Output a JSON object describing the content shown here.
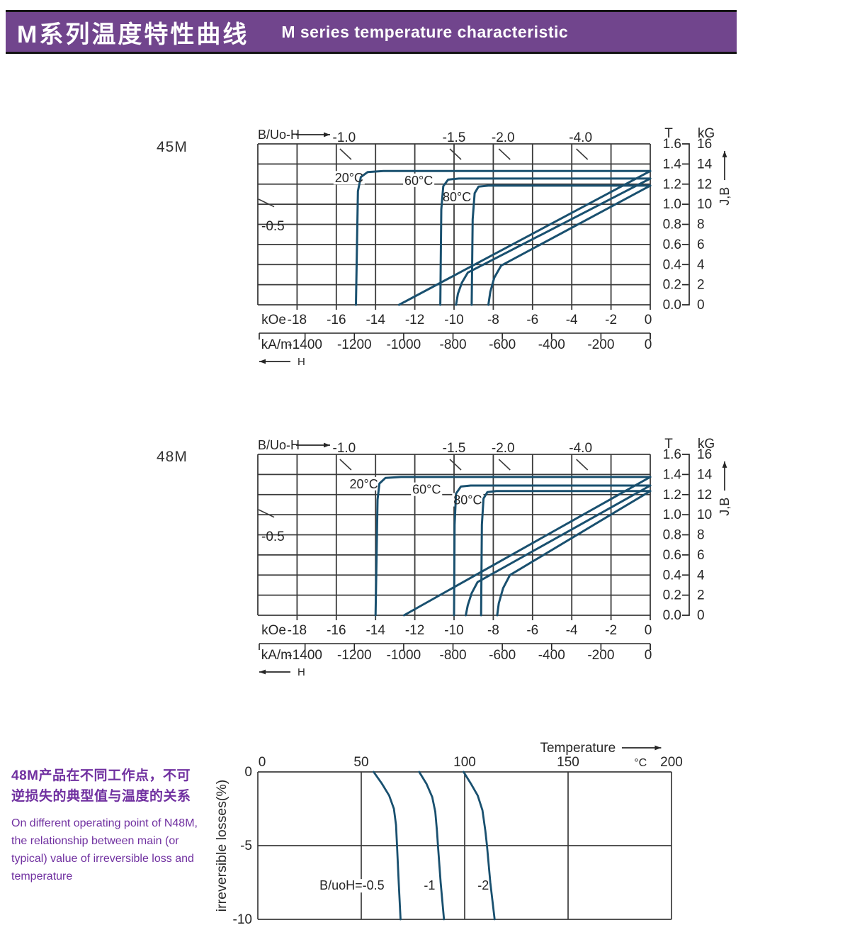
{
  "header": {
    "title_zh": "M系列温度特性曲线",
    "title_en": "M series temperature characteristic"
  },
  "colors": {
    "curve": "#19506f",
    "grid": "#3b3b3b",
    "text": "#262626",
    "accent_purple": "#7030a0",
    "header_bg": "#71458d",
    "background": "#ffffff"
  },
  "description": {
    "zh_lines": [
      "48M产品在不同工作点，不可",
      "逆损失的典型值与温度的关系"
    ],
    "en_lines": [
      "On different operating point of N48M,",
      "the relationship between main (or",
      "typical) value of irreversible loss and",
      "temperature"
    ]
  },
  "chart_data": [
    {
      "type": "line",
      "title": "45M",
      "axis_top_label": "B/Uo-H",
      "h_unit_primary": "kOe",
      "h_ticks_kOe": [
        -18,
        -16,
        -14,
        -12,
        -10,
        -8,
        -6,
        -4,
        -2,
        0
      ],
      "h_unit_secondary": "kA/m",
      "h_ticks_kAm": [
        -1400,
        -1200,
        -1000,
        -800,
        -600,
        -400,
        -200,
        0
      ],
      "h_arrow_label": "H",
      "h_range_kOe": [
        -20,
        0
      ],
      "b_unit_left": "T",
      "b_ticks_T": [
        "1.6",
        "1.4",
        "1.2",
        "1.0",
        "0.8",
        "0.6",
        "0.4",
        "0.2",
        "0.0"
      ],
      "b_unit_right": "kG",
      "b_ticks_kG": [
        16,
        14,
        12,
        10,
        8,
        6,
        4,
        2,
        0
      ],
      "b_range_kG": [
        0,
        16
      ],
      "jb_axis_label": "J,B",
      "grid": true,
      "load_lines": [
        {
          "label": "-1.0",
          "H_kOe": -15.6
        },
        {
          "label": "-1.5",
          "H_kOe": -10.0
        },
        {
          "label": "-2.0",
          "H_kOe": -7.5
        },
        {
          "label": "-4.0",
          "H_kOe": -3.55
        }
      ],
      "load_line_left": {
        "label": "-0.5",
        "B_kG": 7.4
      },
      "series": [
        {
          "name": "20°C",
          "label_pos": [
            -15.35,
            12.6
          ],
          "J": [
            [
              0,
              13.3
            ],
            [
              -13.6,
              13.3
            ],
            [
              -14.4,
              13.2
            ],
            [
              -14.75,
              12.7
            ],
            [
              -14.9,
              11.3
            ],
            [
              -15.0,
              0
            ]
          ],
          "B": [
            [
              0,
              13.3
            ],
            [
              -12.8,
              0
            ]
          ]
        },
        {
          "name": "60°C",
          "label_pos": [
            -11.8,
            12.35
          ],
          "J": [
            [
              0,
              12.55
            ],
            [
              -9.75,
              12.55
            ],
            [
              -10.3,
              12.45
            ],
            [
              -10.55,
              11.8
            ],
            [
              -10.65,
              9.5
            ],
            [
              -10.7,
              0
            ]
          ],
          "B": [
            [
              0,
              12.55
            ],
            [
              -9.3,
              3.2
            ],
            [
              -9.6,
              2.2
            ],
            [
              -9.8,
              1.1
            ],
            [
              -9.9,
              0
            ]
          ]
        },
        {
          "name": "80°C",
          "label_pos": [
            -9.85,
            10.7
          ],
          "J": [
            [
              0,
              11.85
            ],
            [
              -8.25,
              11.85
            ],
            [
              -8.75,
              11.75
            ],
            [
              -8.95,
              11.1
            ],
            [
              -9.05,
              8.5
            ],
            [
              -9.1,
              0
            ]
          ],
          "B": [
            [
              0,
              11.85
            ],
            [
              -7.6,
              3.9
            ],
            [
              -7.95,
              2.7
            ],
            [
              -8.15,
              1.3
            ],
            [
              -8.25,
              0
            ]
          ]
        }
      ]
    },
    {
      "type": "line",
      "title": "48M",
      "axis_top_label": "B/Uo-H",
      "h_unit_primary": "kOe",
      "h_ticks_kOe": [
        -18,
        -16,
        -14,
        -12,
        -10,
        -8,
        -6,
        -4,
        -2,
        0
      ],
      "h_unit_secondary": "kA/m",
      "h_ticks_kAm": [
        -1400,
        -1200,
        -1000,
        -800,
        -600,
        -400,
        -200,
        0
      ],
      "h_arrow_label": "H",
      "h_range_kOe": [
        -20,
        0
      ],
      "b_unit_left": "T",
      "b_ticks_T": [
        "1.6",
        "1.4",
        "1.2",
        "1.0",
        "0.8",
        "0.6",
        "0.4",
        "0.2",
        "0.0"
      ],
      "b_unit_right": "kG",
      "b_ticks_kG": [
        16,
        14,
        12,
        10,
        8,
        6,
        4,
        2,
        0
      ],
      "b_range_kG": [
        0,
        16
      ],
      "jb_axis_label": "J,B",
      "grid": true,
      "load_lines": [
        {
          "label": "-1.0",
          "H_kOe": -15.6
        },
        {
          "label": "-1.5",
          "H_kOe": -10.0
        },
        {
          "label": "-2.0",
          "H_kOe": -7.5
        },
        {
          "label": "-4.0",
          "H_kOe": -3.55
        }
      ],
      "load_line_left": {
        "label": "-0.5",
        "B_kG": 7.4
      },
      "series": [
        {
          "name": "20°C",
          "label_pos": [
            -14.6,
            13.05
          ],
          "J": [
            [
              0,
              13.75
            ],
            [
              -12.7,
              13.75
            ],
            [
              -13.5,
              13.65
            ],
            [
              -13.8,
              13.1
            ],
            [
              -13.9,
              11.5
            ],
            [
              -14.0,
              0
            ]
          ],
          "B": [
            [
              0,
              13.75
            ],
            [
              -12.55,
              0
            ]
          ]
        },
        {
          "name": "60°C",
          "label_pos": [
            -11.4,
            12.5
          ],
          "J": [
            [
              0,
              12.9
            ],
            [
              -9.15,
              12.9
            ],
            [
              -9.65,
              12.8
            ],
            [
              -9.9,
              12.1
            ],
            [
              -9.97,
              9.0
            ],
            [
              -10.0,
              0
            ]
          ],
          "B": [
            [
              0,
              12.9
            ],
            [
              -8.8,
              3.3
            ],
            [
              -9.1,
              2.2
            ],
            [
              -9.3,
              1.0
            ],
            [
              -9.4,
              0
            ]
          ]
        },
        {
          "name": "80°C",
          "label_pos": [
            -9.3,
            11.45
          ],
          "J": [
            [
              0,
              12.35
            ],
            [
              -7.85,
              12.35
            ],
            [
              -8.3,
              12.25
            ],
            [
              -8.5,
              11.6
            ],
            [
              -8.58,
              9.0
            ],
            [
              -8.62,
              0
            ]
          ],
          "B": [
            [
              0,
              12.35
            ],
            [
              -7.15,
              4.0
            ],
            [
              -7.5,
              2.7
            ],
            [
              -7.72,
              1.2
            ],
            [
              -7.8,
              0
            ]
          ]
        }
      ]
    },
    {
      "type": "line",
      "title": "Temperature",
      "x_unit": "°C",
      "x_ticks": [
        0,
        50,
        100,
        150,
        200
      ],
      "x_range": [
        0,
        200
      ],
      "y_ticks": [
        0,
        -5,
        -10
      ],
      "y_range": [
        -10,
        0
      ],
      "ylabel": "irreversible losses(%)",
      "grid": true,
      "series": [
        {
          "name": "B/uoH=-0.5",
          "label_pos": [
            45.5,
            -7.7
          ],
          "points": [
            [
              56,
              0
            ],
            [
              60,
              -0.8
            ],
            [
              63.5,
              -1.6
            ],
            [
              65.8,
              -2.5
            ],
            [
              66.8,
              -3.6
            ],
            [
              67.3,
              -5
            ],
            [
              68.1,
              -7.5
            ],
            [
              69,
              -10
            ]
          ]
        },
        {
          "name": "-1",
          "label_pos": [
            83,
            -7.7
          ],
          "points": [
            [
              78,
              0
            ],
            [
              81.5,
              -0.8
            ],
            [
              84.3,
              -1.7
            ],
            [
              85.8,
              -2.7
            ],
            [
              86.6,
              -4
            ],
            [
              87.1,
              -5
            ],
            [
              88.4,
              -7.5
            ],
            [
              90,
              -10
            ]
          ]
        },
        {
          "name": "-2",
          "label_pos": [
            109,
            -7.7
          ],
          "points": [
            [
              99.5,
              0
            ],
            [
              103,
              -0.8
            ],
            [
              106.3,
              -1.6
            ],
            [
              108.6,
              -2.6
            ],
            [
              110,
              -4
            ],
            [
              110.8,
              -5
            ],
            [
              112.4,
              -7.5
            ],
            [
              114.5,
              -10
            ]
          ]
        }
      ]
    }
  ]
}
